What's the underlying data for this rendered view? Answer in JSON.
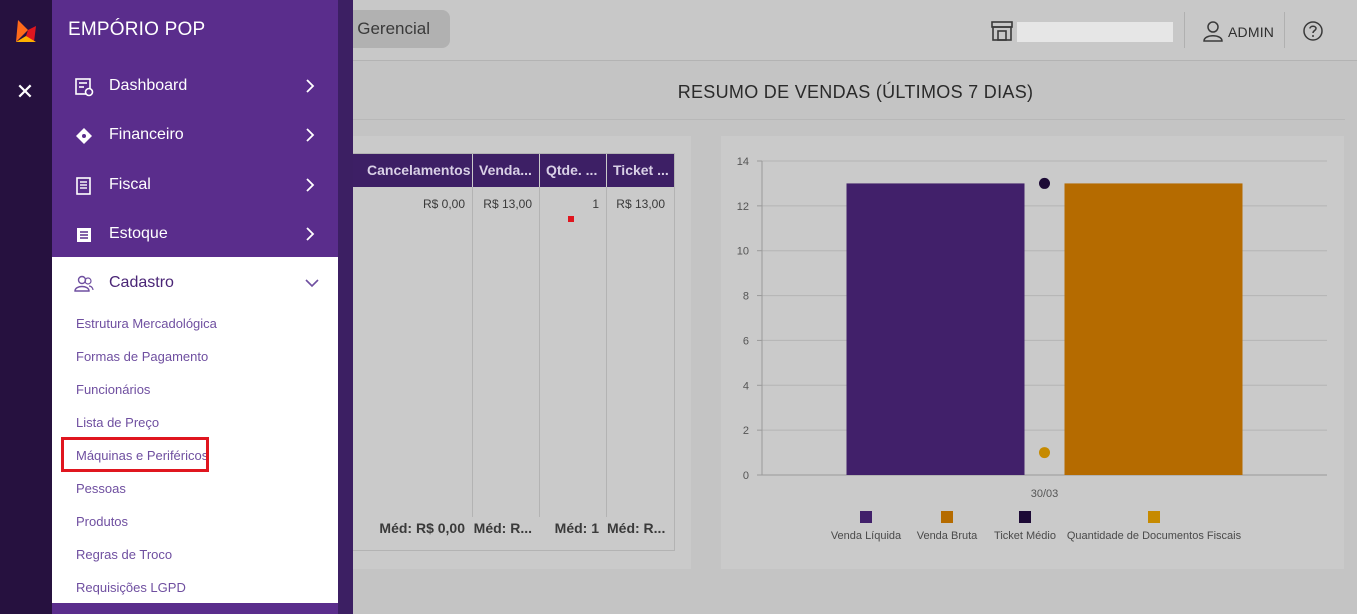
{
  "sidebar": {
    "brand": "EMPÓRIO POP",
    "items": [
      {
        "label": "Dashboard",
        "icon": "dashboard-icon"
      },
      {
        "label": "Financeiro",
        "icon": "tag-icon"
      },
      {
        "label": "Fiscal",
        "icon": "receipt-icon"
      },
      {
        "label": "Estoque",
        "icon": "inventory-icon"
      },
      {
        "label": "Cadastro",
        "icon": "users-icon"
      }
    ],
    "cadastro_submenu": [
      "Estrutura Mercadológica",
      "Formas de Pagamento",
      "Funcionários",
      "Lista de Preço",
      "Máquinas e Periféricos",
      "Pessoas",
      "Produtos",
      "Regras de Troco",
      "Requisições LGPD"
    ],
    "highlighted_item": "Máquinas e Periféricos"
  },
  "header": {
    "tab": "Gerencial",
    "user": "ADMIN",
    "icons": [
      "store-icon",
      "user-icon",
      "help-icon"
    ]
  },
  "main": {
    "title": "RESUMO DE VENDAS (ÚLTIMOS 7 DIAS)",
    "table": {
      "columns": [
        "Cancelamentos",
        "Venda...",
        "Qtde. ...",
        "Ticket ..."
      ],
      "row": [
        "R$ 0,00",
        "R$ 13,00",
        "1",
        "R$ 13,00"
      ],
      "footer": [
        "Méd: R$ 0,00",
        "Méd: R...",
        "Méd: 1",
        "Méd: R..."
      ]
    }
  },
  "chart_data": {
    "type": "bar",
    "categories": [
      "30/03"
    ],
    "ylim": [
      0,
      14
    ],
    "yticks": [
      0,
      2,
      4,
      6,
      8,
      10,
      12,
      14
    ],
    "series": [
      {
        "name": "Venda Líquida",
        "type": "bar",
        "values": [
          13
        ],
        "color": "#41206a"
      },
      {
        "name": "Venda Bruta",
        "type": "bar",
        "values": [
          13
        ],
        "color": "#b56b00"
      },
      {
        "name": "Ticket Médio",
        "type": "point",
        "values": [
          13
        ],
        "color": "#1d0a36"
      },
      {
        "name": "Quantidade de Documentos Fiscais",
        "type": "point",
        "values": [
          1
        ],
        "color": "#c68a00"
      }
    ],
    "legend": "bottom",
    "grid": true
  },
  "colors": {
    "sidebar": "#5a2d8c",
    "rail": "#26113f",
    "table_header": "#3d1f65",
    "highlight": "#e0161f"
  }
}
